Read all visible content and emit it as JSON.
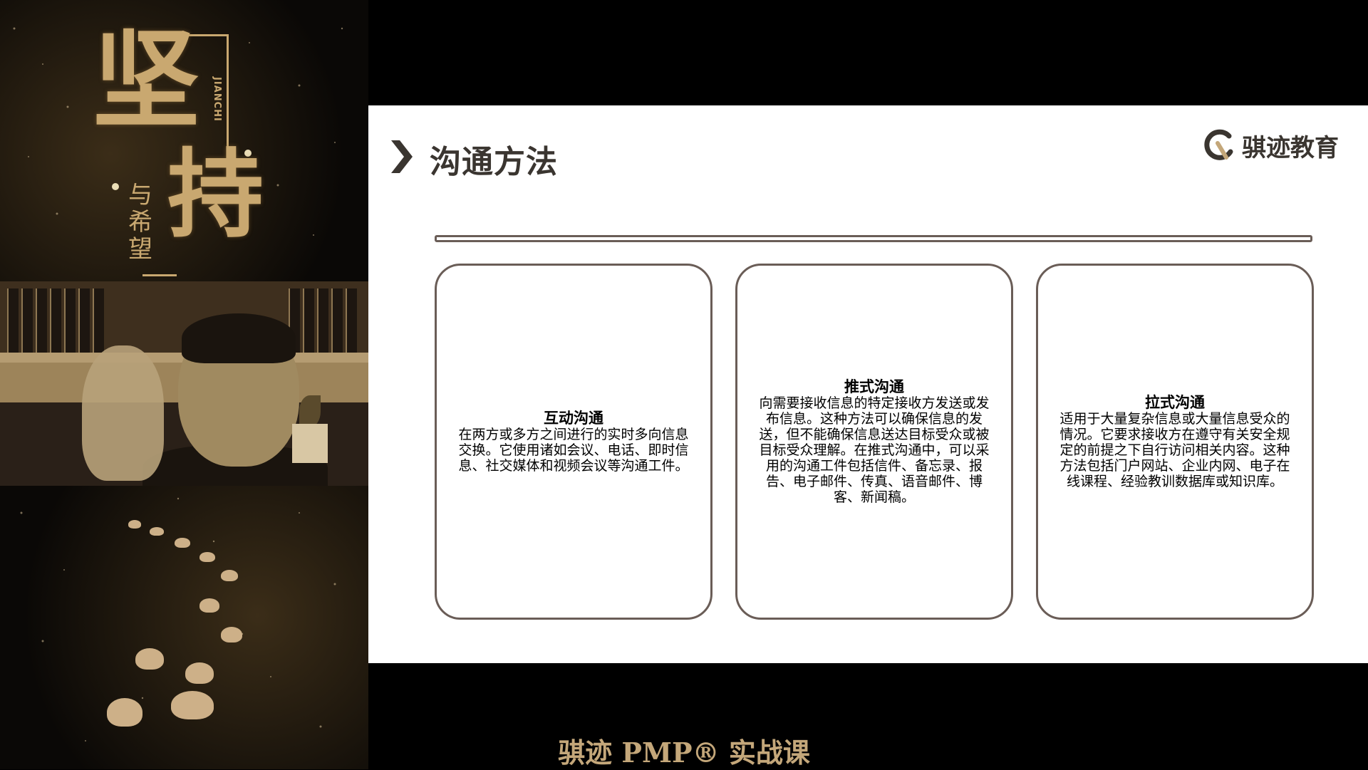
{
  "poster": {
    "big_char_1": "坚",
    "big_char_2": "持",
    "sub_text": "与希望",
    "en_text": "JIANCHI"
  },
  "slide": {
    "title": "沟通方法",
    "logo_text": "骐迹教育",
    "cards": [
      {
        "title": "互动沟通",
        "body": "在两方或多方之间进行的实时多向信息交换。它使用诸如会议、电话、即时信息、社交媒体和视频会议等沟通工件。"
      },
      {
        "title": "推式沟通",
        "body": "向需要接收信息的特定接收方发送或发布信息。这种方法可以确保信息的发送，但不能确保信息送达目标受众或被目标受众理解。在推式沟通中，可以采用的沟通工件包括信件、备忘录、报告、电子邮件、传真、语音邮件、博客、新闻稿。"
      },
      {
        "title": "拉式沟通",
        "body": "适用于大量复杂信息或大量信息受众的情况。它要求接收方在遵守有关安全规定的前提之下自行访问相关内容。这种方法包括门户网站、企业内网、电子在线课程、经验教训数据库或知识库。"
      }
    ]
  },
  "caption": "骐迹 PMP® 实战课",
  "colors": {
    "gold": "#c4a77a",
    "border": "#6a5d57",
    "title_text": "#3a3530"
  }
}
